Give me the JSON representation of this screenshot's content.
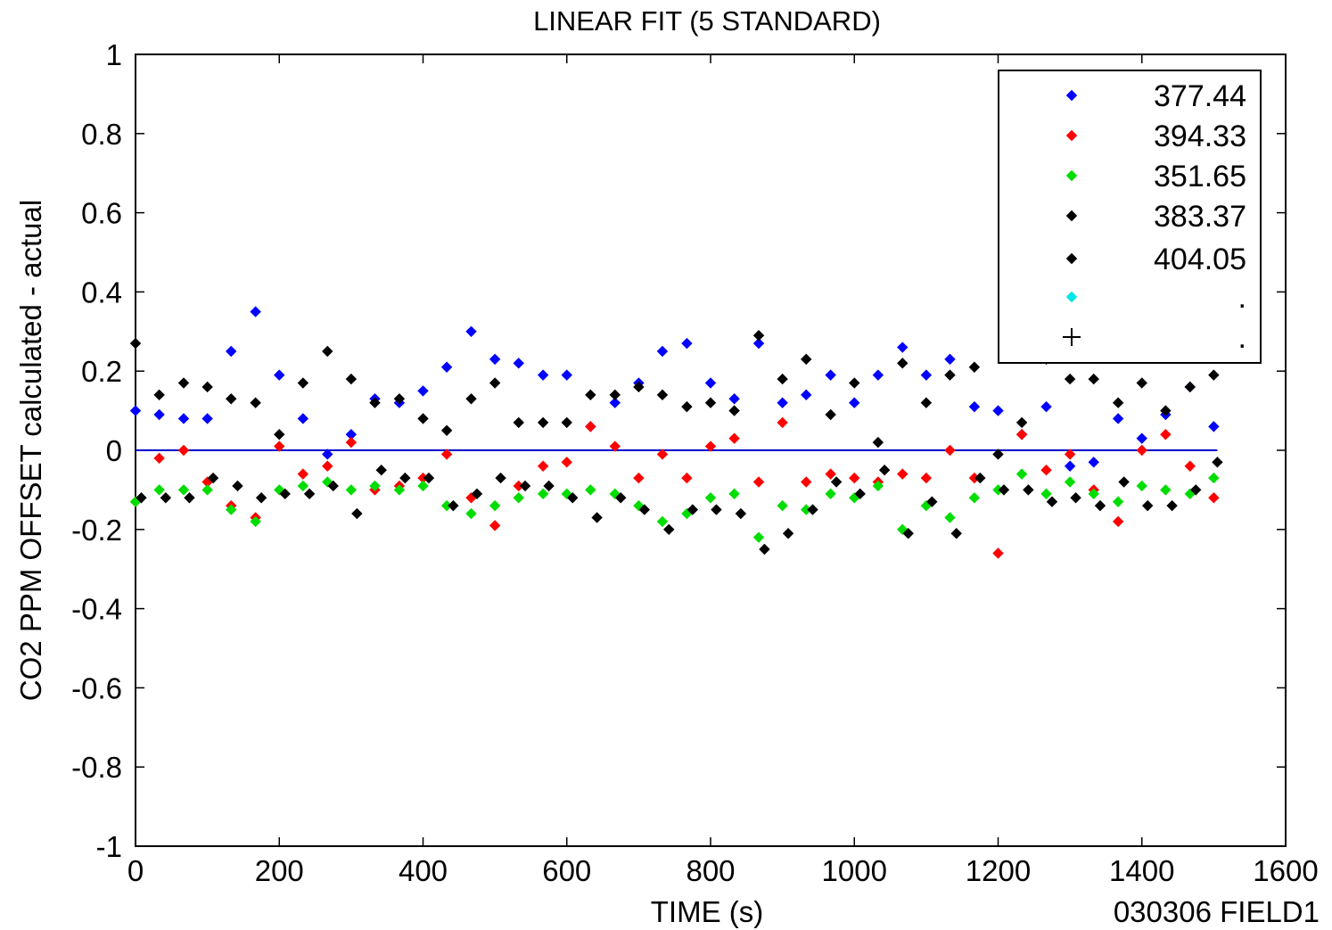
{
  "chart_data": {
    "type": "scatter",
    "title": "LINEAR FIT (5 STANDARD)",
    "xlabel": "TIME (s)",
    "ylabel": "CO2 PPM OFFSET calculated - actual",
    "footer": "030306 FIELD1",
    "xlim": [
      0,
      1600
    ],
    "ylim": [
      -1,
      1
    ],
    "xticks": [
      "0",
      "200",
      "400",
      "600",
      "800",
      "1000",
      "1200",
      "1400",
      "1600"
    ],
    "yticks": [
      "1",
      "0.8",
      "0.6",
      "0.4",
      "0.2",
      "0",
      "-0.2",
      "-0.4",
      "-0.6",
      "-0.8",
      "-1"
    ],
    "grid": false,
    "legend_position": "top-right",
    "reference_line": {
      "y": 0,
      "x_range": [
        0,
        1505
      ],
      "color": "#0000cc"
    },
    "series": [
      {
        "name": "377.44",
        "marker": "diamond",
        "color": "#0000ff",
        "x": [
          0,
          33,
          67,
          100,
          133,
          167,
          200,
          233,
          267,
          300,
          333,
          367,
          400,
          433,
          467,
          500,
          533,
          567,
          600,
          633,
          667,
          700,
          733,
          767,
          800,
          833,
          867,
          900,
          933,
          967,
          1000,
          1033,
          1067,
          1100,
          1133,
          1167,
          1200,
          1233,
          1267,
          1300,
          1333,
          1367,
          1400,
          1433,
          1467,
          1500
        ],
        "y": [
          0.1,
          0.09,
          0.08,
          0.08,
          0.25,
          0.35,
          0.19,
          0.08,
          -0.01,
          0.04,
          0.13,
          0.12,
          0.15,
          0.21,
          0.3,
          0.23,
          0.22,
          0.19,
          0.19,
          0.06,
          0.12,
          0.17,
          0.25,
          0.27,
          0.17,
          0.13,
          0.27,
          0.12,
          0.14,
          0.19,
          0.12,
          0.19,
          0.26,
          0.19,
          0.23,
          0.11,
          0.1,
          0.04,
          0.11,
          -0.04,
          -0.03,
          0.08,
          0.03,
          0.09,
          0.16,
          0.06
        ]
      },
      {
        "name": "394.33",
        "marker": "diamond",
        "color": "#ff0000",
        "x": [
          0,
          33,
          67,
          100,
          133,
          167,
          200,
          233,
          267,
          300,
          333,
          367,
          400,
          433,
          467,
          500,
          533,
          567,
          600,
          633,
          667,
          700,
          733,
          767,
          800,
          833,
          867,
          900,
          933,
          967,
          1000,
          1033,
          1067,
          1100,
          1133,
          1167,
          1200,
          1233,
          1267,
          1300,
          1333,
          1367,
          1400,
          1433,
          1467,
          1500
        ],
        "y": [
          -0.13,
          -0.02,
          0.0,
          -0.08,
          -0.14,
          -0.17,
          0.01,
          -0.06,
          -0.04,
          0.02,
          -0.1,
          -0.09,
          -0.07,
          -0.01,
          -0.12,
          -0.19,
          -0.09,
          -0.04,
          -0.03,
          0.06,
          0.01,
          -0.07,
          -0.01,
          -0.07,
          0.01,
          0.03,
          -0.08,
          0.07,
          -0.08,
          -0.06,
          -0.07,
          -0.08,
          -0.06,
          -0.07,
          0.0,
          -0.07,
          -0.26,
          0.04,
          -0.05,
          -0.01,
          -0.1,
          -0.18,
          0.0,
          0.04,
          -0.04,
          -0.12
        ]
      },
      {
        "name": "351.65",
        "marker": "diamond",
        "color": "#00dd00",
        "x": [
          0,
          33,
          67,
          100,
          133,
          167,
          200,
          233,
          267,
          300,
          333,
          367,
          400,
          433,
          467,
          500,
          533,
          567,
          600,
          633,
          667,
          700,
          733,
          767,
          800,
          833,
          867,
          900,
          933,
          967,
          1000,
          1033,
          1067,
          1100,
          1133,
          1167,
          1200,
          1233,
          1267,
          1300,
          1333,
          1367,
          1400,
          1433,
          1467,
          1500
        ],
        "y": [
          -0.13,
          -0.1,
          -0.1,
          -0.1,
          -0.15,
          -0.18,
          -0.1,
          -0.09,
          -0.08,
          -0.1,
          -0.09,
          -0.1,
          -0.09,
          -0.14,
          -0.16,
          -0.14,
          -0.12,
          -0.11,
          -0.11,
          -0.1,
          -0.11,
          -0.14,
          -0.18,
          -0.16,
          -0.12,
          -0.11,
          -0.22,
          -0.14,
          -0.15,
          -0.11,
          -0.12,
          -0.09,
          -0.2,
          -0.14,
          -0.17,
          -0.12,
          -0.1,
          -0.06,
          -0.11,
          -0.08,
          -0.11,
          -0.13,
          -0.09,
          -0.1,
          -0.11,
          -0.07
        ]
      },
      {
        "name": "383.37",
        "marker": "diamond",
        "color": "#000000",
        "x": [
          0,
          33,
          67,
          100,
          133,
          167,
          200,
          233,
          267,
          300,
          333,
          367,
          400,
          433,
          467,
          500,
          533,
          567,
          600,
          633,
          667,
          700,
          733,
          767,
          800,
          833,
          867,
          900,
          933,
          967,
          1000,
          1033,
          1067,
          1100,
          1133,
          1167,
          1200,
          1233,
          1267,
          1300,
          1333,
          1367,
          1400,
          1433,
          1467,
          1500
        ],
        "y": [
          0.27,
          0.14,
          0.17,
          0.16,
          0.13,
          0.12,
          0.04,
          0.17,
          0.25,
          0.18,
          0.12,
          0.13,
          0.08,
          0.05,
          0.13,
          0.17,
          0.07,
          0.07,
          0.07,
          0.14,
          0.14,
          0.16,
          0.14,
          0.11,
          0.12,
          0.1,
          0.29,
          0.18,
          0.23,
          0.09,
          0.17,
          0.02,
          0.22,
          0.12,
          0.19,
          0.21,
          -0.01,
          0.07,
          0.23,
          0.18,
          0.18,
          0.12,
          0.17,
          0.1,
          0.16,
          0.19
        ]
      },
      {
        "name": "404.05",
        "marker": "diamond",
        "color": "#000000",
        "x": [
          8,
          42,
          75,
          108,
          142,
          175,
          208,
          242,
          275,
          308,
          342,
          375,
          408,
          442,
          475,
          508,
          542,
          575,
          608,
          642,
          675,
          708,
          742,
          775,
          808,
          842,
          875,
          908,
          942,
          975,
          1008,
          1042,
          1075,
          1108,
          1142,
          1175,
          1208,
          1242,
          1275,
          1308,
          1342,
          1375,
          1408,
          1442,
          1475,
          1505
        ],
        "y": [
          -0.12,
          -0.12,
          -0.12,
          -0.07,
          -0.09,
          -0.12,
          -0.11,
          -0.11,
          -0.09,
          -0.16,
          -0.05,
          -0.07,
          -0.07,
          -0.14,
          -0.11,
          -0.07,
          -0.09,
          -0.09,
          -0.12,
          -0.17,
          -0.12,
          -0.15,
          -0.2,
          -0.15,
          -0.15,
          -0.16,
          -0.25,
          -0.21,
          -0.15,
          -0.08,
          -0.11,
          -0.05,
          -0.21,
          -0.13,
          -0.21,
          -0.07,
          -0.1,
          -0.1,
          -0.13,
          -0.12,
          -0.14,
          -0.08,
          -0.14,
          -0.14,
          -0.1,
          -0.03
        ]
      },
      {
        "name": ".",
        "marker": "diamond",
        "color": "#00e5e5",
        "x": [],
        "y": []
      },
      {
        "name": ".",
        "marker": "plus",
        "color": "#000000",
        "x": [],
        "y": []
      }
    ]
  }
}
